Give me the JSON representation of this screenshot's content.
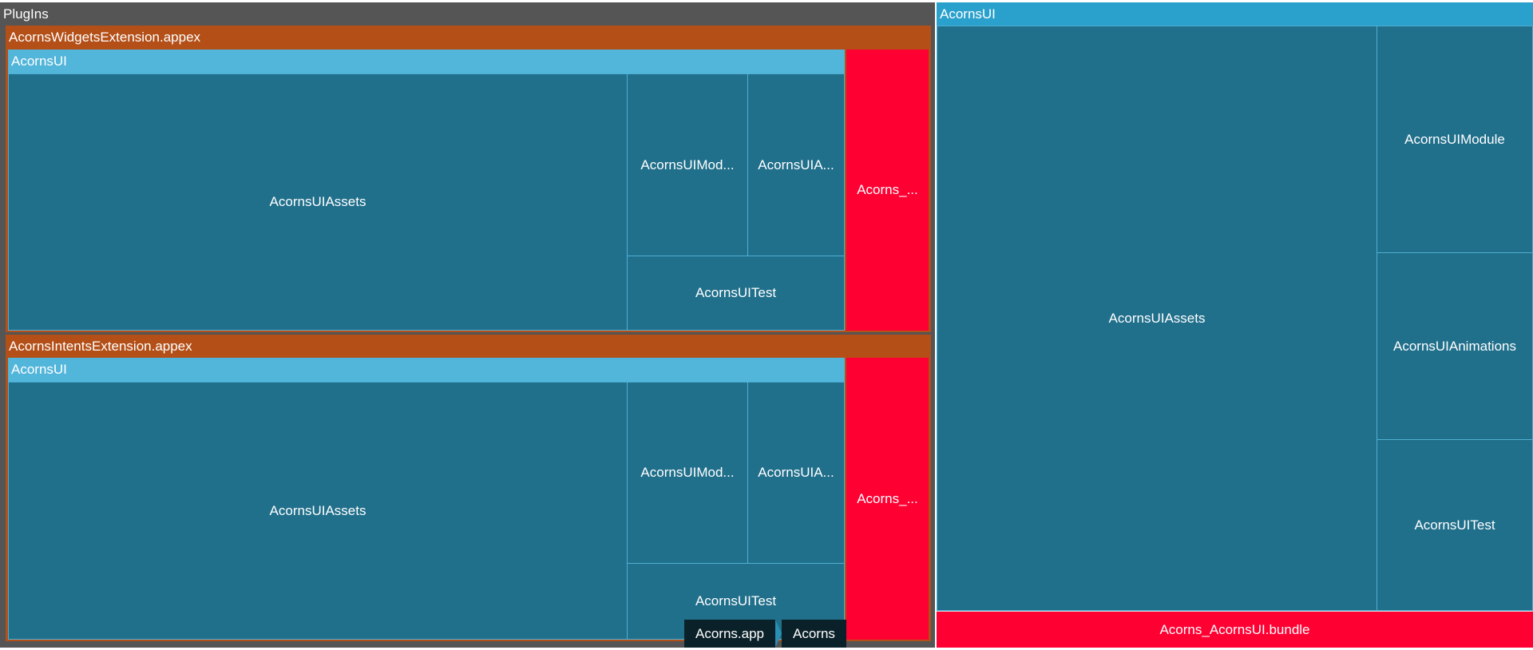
{
  "colors": {
    "group": "#555555",
    "appex": "#b34f17",
    "module_header": "#52b5da",
    "right_header": "#2aa0cc",
    "cell": "#206f8b",
    "highlight": "#ff0033"
  },
  "plugins": {
    "title": "PlugIns",
    "appexes": [
      {
        "title": "AcornsWidgetsExtension.appex",
        "module": "AcornsUI",
        "assets": "AcornsUIAssets",
        "module_cell": "AcornsUIMod...",
        "animations": "AcornsUIA...",
        "test": "AcornsUITest",
        "bundle": "Acorns_..."
      },
      {
        "title": "AcornsIntentsExtension.appex",
        "module": "AcornsUI",
        "assets": "AcornsUIAssets",
        "module_cell": "AcornsUIMod...",
        "animations": "AcornsUIA...",
        "test": "AcornsUITest",
        "bundle": "Acorns_..."
      }
    ]
  },
  "right": {
    "title": "AcornsUI",
    "assets": "AcornsUIAssets",
    "module_cell": "AcornsUIModule",
    "animations": "AcornsUIAnimations",
    "test": "AcornsUITest",
    "bundle": "Acorns_AcornsUI.bundle"
  },
  "breadcrumb": [
    "Acorns.app",
    "Acorns"
  ]
}
